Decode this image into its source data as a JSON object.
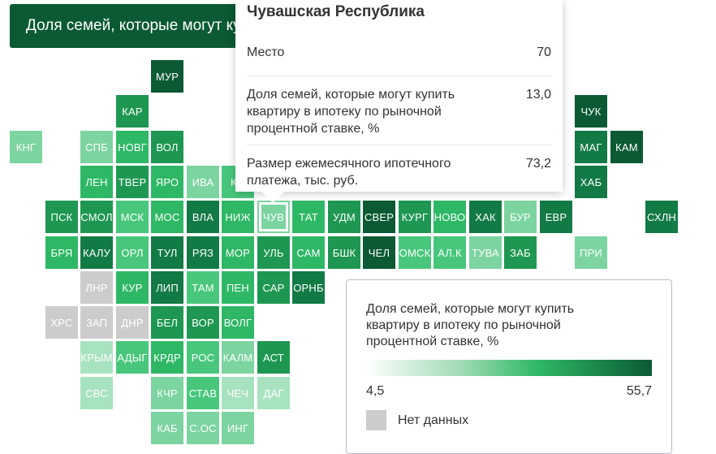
{
  "title": "Доля семей, которые могут купить квартиру в ипотеку по рыночной процентной ставке, %",
  "colors": {
    "dark": "#0b5a33",
    "dark2": "#127a45",
    "mid_dark": "#1e9752",
    "mid": "#2eb866",
    "mid_light": "#48c77c",
    "light": "#7cd4a0",
    "pale": "#a8e3c0",
    "nodata": "#cccccc"
  },
  "tiles": [
    {
      "label": "МУР",
      "col": 4,
      "row": 0,
      "color": "#0b5a33"
    },
    {
      "label": "КАР",
      "col": 3,
      "row": 1,
      "color": "#1e9752"
    },
    {
      "label": "КНГ",
      "col": 0,
      "row": 2,
      "color": "#7cd4a0"
    },
    {
      "label": "СПБ",
      "col": 2,
      "row": 2,
      "color": "#7cd4a0"
    },
    {
      "label": "НОВГ",
      "col": 3,
      "row": 2,
      "color": "#2eb866"
    },
    {
      "label": "ВОЛ",
      "col": 4,
      "row": 2,
      "color": "#1e9752"
    },
    {
      "label": "ЛЕН",
      "col": 2,
      "row": 3,
      "color": "#2eb866"
    },
    {
      "label": "ТВЕР",
      "col": 3,
      "row": 3,
      "color": "#1e9752"
    },
    {
      "label": "ЯРО",
      "col": 4,
      "row": 3,
      "color": "#2eb866"
    },
    {
      "label": "ИВА",
      "col": 5,
      "row": 3,
      "color": "#7cd4a0"
    },
    {
      "label": "КО",
      "col": 6,
      "row": 3,
      "color": "#48c77c"
    },
    {
      "label": "ПСК",
      "col": 1,
      "row": 4,
      "color": "#1e9752"
    },
    {
      "label": "СМОЛ",
      "col": 2,
      "row": 4,
      "color": "#1e9752"
    },
    {
      "label": "МСК",
      "col": 3,
      "row": 4,
      "color": "#48c77c"
    },
    {
      "label": "МОС",
      "col": 4,
      "row": 4,
      "color": "#2eb866"
    },
    {
      "label": "ВЛА",
      "col": 5,
      "row": 4,
      "color": "#127a45"
    },
    {
      "label": "НИЖ",
      "col": 6,
      "row": 4,
      "color": "#2eb866"
    },
    {
      "label": "ЧУВ",
      "col": 7,
      "row": 4,
      "color": "#7cd4a0",
      "selected": true
    },
    {
      "label": "ТАТ",
      "col": 8,
      "row": 4,
      "color": "#2eb866"
    },
    {
      "label": "УДМ",
      "col": 9,
      "row": 4,
      "color": "#1e9752"
    },
    {
      "label": "СВЕР",
      "col": 10,
      "row": 4,
      "color": "#0b5a33"
    },
    {
      "label": "КУРГ",
      "col": 11,
      "row": 4,
      "color": "#1e9752"
    },
    {
      "label": "НОВО",
      "col": 12,
      "row": 4,
      "color": "#2eb866"
    },
    {
      "label": "ХАК",
      "col": 13,
      "row": 4,
      "color": "#127a45"
    },
    {
      "label": "БУР",
      "col": 14,
      "row": 4,
      "color": "#7cd4a0"
    },
    {
      "label": "ЕВР",
      "col": 15,
      "row": 4,
      "color": "#127a45"
    },
    {
      "label": "СХЛН",
      "col": 18,
      "row": 4,
      "color": "#127a45"
    },
    {
      "label": "БРЯ",
      "col": 1,
      "row": 5,
      "color": "#2eb866"
    },
    {
      "label": "КАЛУ",
      "col": 2,
      "row": 5,
      "color": "#127a45"
    },
    {
      "label": "ОРЛ",
      "col": 3,
      "row": 5,
      "color": "#48c77c"
    },
    {
      "label": "ТУЛ",
      "col": 4,
      "row": 5,
      "color": "#127a45"
    },
    {
      "label": "РЯЗ",
      "col": 5,
      "row": 5,
      "color": "#127a45"
    },
    {
      "label": "МОР",
      "col": 6,
      "row": 5,
      "color": "#2eb866"
    },
    {
      "label": "УЛЬ",
      "col": 7,
      "row": 5,
      "color": "#1e9752"
    },
    {
      "label": "САМ",
      "col": 8,
      "row": 5,
      "color": "#2eb866"
    },
    {
      "label": "БШК",
      "col": 9,
      "row": 5,
      "color": "#1e9752"
    },
    {
      "label": "ЧЕЛ",
      "col": 10,
      "row": 5,
      "color": "#0b5a33"
    },
    {
      "label": "ОМСК",
      "col": 11,
      "row": 5,
      "color": "#48c77c"
    },
    {
      "label": "АЛ.К",
      "col": 12,
      "row": 5,
      "color": "#48c77c"
    },
    {
      "label": "ТУВА",
      "col": 13,
      "row": 5,
      "color": "#7cd4a0"
    },
    {
      "label": "ЗАБ",
      "col": 14,
      "row": 5,
      "color": "#1e9752"
    },
    {
      "label": "ПРИ",
      "col": 16,
      "row": 5,
      "color": "#7cd4a0"
    },
    {
      "label": "ЛНР",
      "col": 2,
      "row": 6,
      "color": "#cccccc"
    },
    {
      "label": "КУР",
      "col": 3,
      "row": 6,
      "color": "#2eb866"
    },
    {
      "label": "ЛИП",
      "col": 4,
      "row": 6,
      "color": "#127a45"
    },
    {
      "label": "ТАМ",
      "col": 5,
      "row": 6,
      "color": "#48c77c"
    },
    {
      "label": "ПЕН",
      "col": 6,
      "row": 6,
      "color": "#2eb866"
    },
    {
      "label": "САР",
      "col": 7,
      "row": 6,
      "color": "#1e9752"
    },
    {
      "label": "ОРНБ",
      "col": 8,
      "row": 6,
      "color": "#127a45"
    },
    {
      "label": "ХРС",
      "col": 1,
      "row": 7,
      "color": "#cccccc"
    },
    {
      "label": "ЗАП",
      "col": 2,
      "row": 7,
      "color": "#cccccc"
    },
    {
      "label": "ДНР",
      "col": 3,
      "row": 7,
      "color": "#cccccc"
    },
    {
      "label": "БЕЛ",
      "col": 4,
      "row": 7,
      "color": "#1e9752"
    },
    {
      "label": "ВОР",
      "col": 5,
      "row": 7,
      "color": "#1e9752"
    },
    {
      "label": "ВОЛГ",
      "col": 6,
      "row": 7,
      "color": "#2eb866"
    },
    {
      "label": "КРЫМ",
      "col": 2,
      "row": 8,
      "color": "#a8e3c0"
    },
    {
      "label": "АДЫГ",
      "col": 3,
      "row": 8,
      "color": "#48c77c"
    },
    {
      "label": "КРДР",
      "col": 4,
      "row": 8,
      "color": "#2eb866"
    },
    {
      "label": "РОС",
      "col": 5,
      "row": 8,
      "color": "#48c77c"
    },
    {
      "label": "КАЛМ",
      "col": 6,
      "row": 8,
      "color": "#7cd4a0"
    },
    {
      "label": "АСТ",
      "col": 7,
      "row": 8,
      "color": "#1e9752"
    },
    {
      "label": "СВС",
      "col": 2,
      "row": 9,
      "color": "#a8e3c0"
    },
    {
      "label": "КЧР",
      "col": 4,
      "row": 9,
      "color": "#7cd4a0"
    },
    {
      "label": "СТАВ",
      "col": 5,
      "row": 9,
      "color": "#48c77c"
    },
    {
      "label": "ЧЕЧ",
      "col": 6,
      "row": 9,
      "color": "#a8e3c0"
    },
    {
      "label": "ДАГ",
      "col": 7,
      "row": 9,
      "color": "#a8e3c0"
    },
    {
      "label": "КАБ",
      "col": 4,
      "row": 10,
      "color": "#7cd4a0"
    },
    {
      "label": "С.ОС",
      "col": 5,
      "row": 10,
      "color": "#7cd4a0"
    },
    {
      "label": "ИНГ",
      "col": 6,
      "row": 10,
      "color": "#7cd4a0"
    },
    {
      "label": "ЧУК",
      "col": 16,
      "row": 1,
      "color": "#0b5a33"
    },
    {
      "label": "МАГ",
      "col": 16,
      "row": 2,
      "color": "#127a45"
    },
    {
      "label": "КАМ",
      "col": 17,
      "row": 2,
      "color": "#0b5a33"
    },
    {
      "label": "ХАБ",
      "col": 16,
      "row": 3,
      "color": "#127a45"
    }
  ],
  "tooltip": {
    "region": "Чувашская Республика",
    "rows": [
      {
        "label": "Место",
        "value": "70"
      },
      {
        "label": "Доля семей, которые могут купить квартиру в ипотеку по рыночной процентной ставке, %",
        "value": "13,0"
      },
      {
        "label": "Размер ежемесячного ипотечного платежа, тыс. руб.",
        "value": "73,2"
      }
    ]
  },
  "legend": {
    "title": "Доля семей, которые могут купить квартиру в ипотеку по рыночной процентной ставке, %",
    "min": "4,5",
    "max": "55,7",
    "nodata_label": "Нет данных"
  }
}
